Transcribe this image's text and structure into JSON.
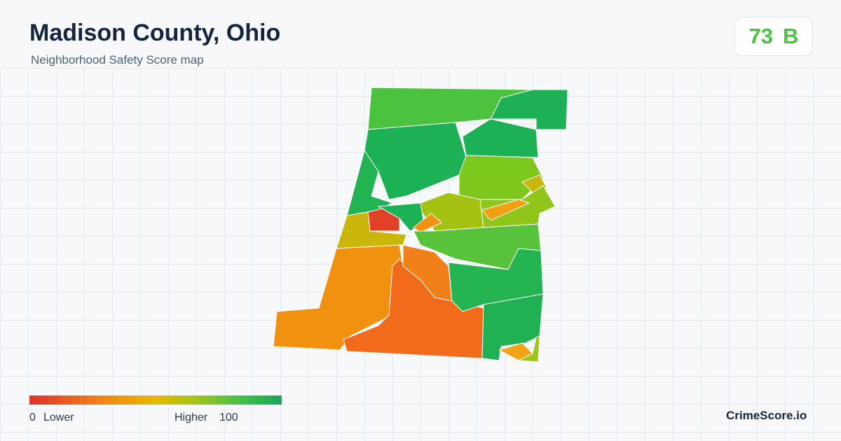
{
  "header": {
    "title": "Madison County, Ohio",
    "subtitle": "Neighborhood Safety Score map"
  },
  "score": {
    "value": "73",
    "grade": "B"
  },
  "legend": {
    "min": "0",
    "low_label": "Lower",
    "high_label": "Higher",
    "max": "100"
  },
  "brand": "CrimeScore.io"
}
